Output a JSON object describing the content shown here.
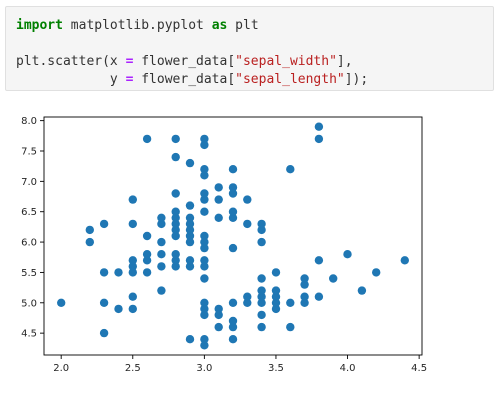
{
  "notebook": {
    "code_lines": [
      [
        {
          "cls": "kw",
          "text": "import"
        },
        {
          "cls": "",
          "text": " matplotlib.pyplot "
        },
        {
          "cls": "kw",
          "text": "as"
        },
        {
          "cls": "",
          "text": " plt"
        }
      ],
      [],
      [
        {
          "cls": "",
          "text": "plt.scatter(x "
        },
        {
          "cls": "op",
          "text": "="
        },
        {
          "cls": "",
          "text": " flower_data["
        },
        {
          "cls": "str",
          "text": "\"sepal_width\""
        },
        {
          "cls": "",
          "text": "],"
        }
      ],
      [
        {
          "cls": "",
          "text": "            y "
        },
        {
          "cls": "op",
          "text": "="
        },
        {
          "cls": "",
          "text": " flower_data["
        },
        {
          "cls": "str",
          "text": "\"sepal_length\""
        },
        {
          "cls": "",
          "text": "]);"
        }
      ]
    ]
  },
  "chart_data": {
    "type": "scatter",
    "title": "",
    "xlabel": "",
    "ylabel": "",
    "xlim": [
      1.88,
      4.52
    ],
    "ylim": [
      4.14,
      8.06
    ],
    "xticks": [
      "2.0",
      "2.5",
      "3.0",
      "3.5",
      "4.0",
      "4.5"
    ],
    "xtick_values": [
      2.0,
      2.5,
      3.0,
      3.5,
      4.0,
      4.5
    ],
    "yticks": [
      "4.5",
      "5.0",
      "5.5",
      "6.0",
      "6.5",
      "7.0",
      "7.5",
      "8.0"
    ],
    "ytick_values": [
      4.5,
      5.0,
      5.5,
      6.0,
      6.5,
      7.0,
      7.5,
      8.0
    ],
    "grid": false,
    "marker_color": "#1f77b4",
    "points": [
      [
        2.0,
        5.0
      ],
      [
        2.2,
        6.0
      ],
      [
        2.2,
        6.2
      ],
      [
        2.3,
        4.5
      ],
      [
        2.3,
        5.0
      ],
      [
        2.3,
        5.5
      ],
      [
        2.3,
        6.3
      ],
      [
        2.4,
        4.9
      ],
      [
        2.4,
        5.5
      ],
      [
        2.5,
        4.9
      ],
      [
        2.5,
        5.1
      ],
      [
        2.5,
        5.5
      ],
      [
        2.5,
        5.6
      ],
      [
        2.5,
        5.7
      ],
      [
        2.5,
        6.3
      ],
      [
        2.5,
        6.7
      ],
      [
        2.6,
        5.5
      ],
      [
        2.6,
        5.7
      ],
      [
        2.6,
        5.8
      ],
      [
        2.6,
        6.1
      ],
      [
        2.6,
        7.7
      ],
      [
        2.7,
        5.2
      ],
      [
        2.7,
        5.6
      ],
      [
        2.7,
        5.8
      ],
      [
        2.7,
        6.0
      ],
      [
        2.7,
        6.3
      ],
      [
        2.7,
        6.4
      ],
      [
        2.8,
        5.6
      ],
      [
        2.8,
        5.7
      ],
      [
        2.8,
        5.8
      ],
      [
        2.8,
        6.1
      ],
      [
        2.8,
        6.2
      ],
      [
        2.8,
        6.3
      ],
      [
        2.8,
        6.4
      ],
      [
        2.8,
        6.5
      ],
      [
        2.8,
        6.8
      ],
      [
        2.8,
        7.4
      ],
      [
        2.8,
        7.7
      ],
      [
        2.9,
        4.4
      ],
      [
        2.9,
        5.6
      ],
      [
        2.9,
        5.7
      ],
      [
        2.9,
        6.0
      ],
      [
        2.9,
        6.1
      ],
      [
        2.9,
        6.2
      ],
      [
        2.9,
        6.3
      ],
      [
        2.9,
        6.4
      ],
      [
        2.9,
        6.6
      ],
      [
        2.9,
        7.3
      ],
      [
        3.0,
        4.3
      ],
      [
        3.0,
        4.4
      ],
      [
        3.0,
        4.8
      ],
      [
        3.0,
        4.9
      ],
      [
        3.0,
        5.0
      ],
      [
        3.0,
        5.4
      ],
      [
        3.0,
        5.6
      ],
      [
        3.0,
        5.7
      ],
      [
        3.0,
        5.9
      ],
      [
        3.0,
        6.0
      ],
      [
        3.0,
        6.1
      ],
      [
        3.0,
        6.5
      ],
      [
        3.0,
        6.7
      ],
      [
        3.0,
        6.8
      ],
      [
        3.0,
        7.1
      ],
      [
        3.0,
        7.2
      ],
      [
        3.0,
        7.6
      ],
      [
        3.0,
        7.7
      ],
      [
        3.1,
        4.6
      ],
      [
        3.1,
        4.8
      ],
      [
        3.1,
        4.9
      ],
      [
        3.1,
        6.4
      ],
      [
        3.1,
        6.7
      ],
      [
        3.1,
        6.9
      ],
      [
        3.2,
        4.4
      ],
      [
        3.2,
        4.6
      ],
      [
        3.2,
        4.7
      ],
      [
        3.2,
        5.0
      ],
      [
        3.2,
        5.9
      ],
      [
        3.2,
        6.4
      ],
      [
        3.2,
        6.5
      ],
      [
        3.2,
        6.8
      ],
      [
        3.2,
        6.9
      ],
      [
        3.2,
        7.2
      ],
      [
        3.3,
        5.0
      ],
      [
        3.3,
        5.1
      ],
      [
        3.3,
        6.3
      ],
      [
        3.3,
        6.7
      ],
      [
        3.4,
        4.6
      ],
      [
        3.4,
        4.8
      ],
      [
        3.4,
        5.0
      ],
      [
        3.4,
        5.1
      ],
      [
        3.4,
        5.2
      ],
      [
        3.4,
        5.4
      ],
      [
        3.4,
        6.0
      ],
      [
        3.4,
        6.2
      ],
      [
        3.4,
        6.3
      ],
      [
        3.5,
        4.9
      ],
      [
        3.5,
        5.0
      ],
      [
        3.5,
        5.1
      ],
      [
        3.5,
        5.2
      ],
      [
        3.5,
        5.5
      ],
      [
        3.6,
        4.6
      ],
      [
        3.6,
        5.0
      ],
      [
        3.6,
        7.2
      ],
      [
        3.7,
        5.0
      ],
      [
        3.7,
        5.1
      ],
      [
        3.7,
        5.3
      ],
      [
        3.7,
        5.4
      ],
      [
        3.8,
        5.1
      ],
      [
        3.8,
        5.7
      ],
      [
        3.8,
        7.7
      ],
      [
        3.8,
        7.9
      ],
      [
        3.9,
        5.4
      ],
      [
        4.0,
        5.8
      ],
      [
        4.1,
        5.2
      ],
      [
        4.2,
        5.5
      ],
      [
        4.4,
        5.7
      ]
    ]
  }
}
